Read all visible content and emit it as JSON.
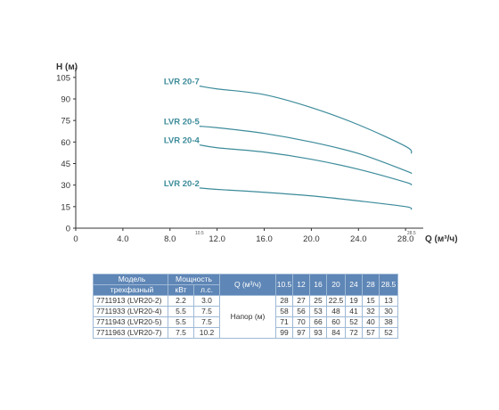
{
  "chart_data": {
    "type": "line",
    "xlabel": "Q (м³/ч)",
    "ylabel": "H (м)",
    "xlim": [
      0,
      29.5
    ],
    "ylim": [
      0,
      108
    ],
    "x_ticks": [
      0,
      4.0,
      8.0,
      12.0,
      16.0,
      20.0,
      24.0,
      28.0
    ],
    "x_tick_labels": [
      "0",
      "4.0",
      "8.0",
      "12.0",
      "16.0",
      "20.0",
      "24.0",
      "28.0"
    ],
    "y_ticks": [
      0,
      15,
      30,
      45,
      60,
      75,
      90,
      105
    ],
    "y_tick_labels": [
      "0",
      "15",
      "30",
      "45",
      "60",
      "75",
      "90",
      "105"
    ],
    "extra_x_annotations": [
      {
        "x": 10.5,
        "label": "10.5"
      },
      {
        "x": 28.5,
        "label": "28.5"
      }
    ],
    "grid": false,
    "curve_color": "#3c8b9a",
    "series": [
      {
        "name": "LVR 20-7",
        "x": [
          10.5,
          12,
          16,
          20,
          24,
          28,
          28.5
        ],
        "y": [
          99,
          97,
          93,
          84,
          72,
          57,
          52
        ]
      },
      {
        "name": "LVR 20-5",
        "x": [
          10.5,
          12,
          16,
          20,
          24,
          28,
          28.5
        ],
        "y": [
          71,
          70,
          66,
          60,
          52,
          40,
          38
        ]
      },
      {
        "name": "LVR 20-4",
        "x": [
          10.5,
          12,
          16,
          20,
          24,
          28,
          28.5
        ],
        "y": [
          58,
          56,
          53,
          48,
          41,
          32,
          30
        ]
      },
      {
        "name": "LVR 20-2",
        "x": [
          10.5,
          12,
          16,
          20,
          24,
          28,
          28.5
        ],
        "y": [
          28,
          27,
          25,
          22.5,
          19,
          15,
          13
        ]
      }
    ]
  },
  "table": {
    "header": {
      "model_line1": "Модель",
      "model_line2": "трехфазный",
      "power": "Мощность",
      "kw": "кВт",
      "hp": "л.с.",
      "q": "Q (м³/ч)",
      "q_values": [
        "10.5",
        "12",
        "16",
        "20",
        "24",
        "28",
        "28.5"
      ]
    },
    "head_label": "Напор (м)",
    "rows": [
      {
        "model": "7711913 (LVR20-2)",
        "kw": "2.2",
        "hp": "3.0",
        "values": [
          "28",
          "27",
          "25",
          "22.5",
          "19",
          "15",
          "13"
        ]
      },
      {
        "model": "7711933 (LVR20-4)",
        "kw": "5.5",
        "hp": "7.5",
        "values": [
          "58",
          "56",
          "53",
          "48",
          "41",
          "32",
          "30"
        ]
      },
      {
        "model": "7711943 (LVR20-5)",
        "kw": "5.5",
        "hp": "7.5",
        "values": [
          "71",
          "70",
          "66",
          "60",
          "52",
          "40",
          "38"
        ]
      },
      {
        "model": "7711963 (LVR20-7)",
        "kw": "7.5",
        "hp": "10.2",
        "values": [
          "99",
          "97",
          "93",
          "84",
          "72",
          "57",
          "52"
        ]
      }
    ]
  }
}
